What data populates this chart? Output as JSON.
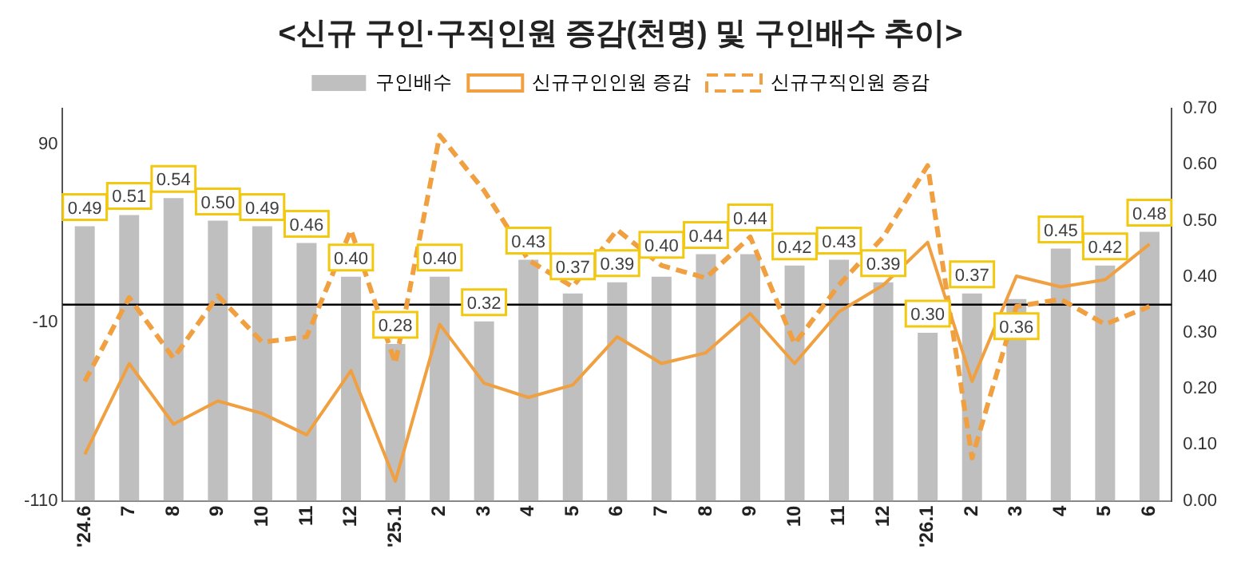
{
  "chart_data": {
    "type": "bar",
    "title": "<신규 구인·구직인원 증감(천명) 및 구인배수 추이>",
    "categories": [
      "'24.6",
      "7",
      "8",
      "9",
      "10",
      "11",
      "12",
      "'25.1",
      "2",
      "3",
      "4",
      "5",
      "6",
      "7",
      "8",
      "9",
      "10",
      "11",
      "12",
      "'26.1",
      "2",
      "3",
      "4",
      "5",
      "6"
    ],
    "series": [
      {
        "name": "구인배수",
        "type": "bar",
        "axis": "y2",
        "color": "#bfbfbf",
        "values": [
          0.49,
          0.51,
          0.54,
          0.5,
          0.49,
          0.46,
          0.4,
          0.28,
          0.4,
          0.32,
          0.43,
          0.37,
          0.39,
          0.4,
          0.44,
          0.44,
          0.42,
          0.43,
          0.39,
          0.3,
          0.37,
          0.36,
          0.45,
          0.42,
          0.48
        ],
        "value_labels": [
          "0.49",
          "0.51",
          "0.54",
          "0.50",
          "0.49",
          "0.46",
          "0.40",
          "0.28",
          "0.40",
          "0.32",
          "0.43",
          "0.37",
          "0.39",
          "0.40",
          "0.44",
          "0.44",
          "0.42",
          "0.43",
          "0.39",
          "0.30",
          "0.37",
          "0.36",
          "0.45",
          "0.42",
          "0.48"
        ]
      },
      {
        "name": "신규구인인원 증감",
        "type": "line",
        "line_style": "solid",
        "color": "#f0a040",
        "values": [
          -84,
          -33,
          -67,
          -54,
          -61,
          -73,
          -37,
          -99,
          -11,
          -44,
          -52,
          -45,
          -18,
          -33,
          -27,
          -5,
          -33,
          -4,
          11,
          35,
          -43,
          16,
          10,
          14,
          34
        ]
      },
      {
        "name": "신규구직인원 증감",
        "type": "line",
        "line_style": "dashed",
        "color": "#f0a040",
        "values": [
          -43,
          4,
          -30,
          5,
          -21,
          -18,
          42,
          -33,
          95,
          64,
          25,
          10,
          42,
          22,
          15,
          38,
          -22,
          11,
          38,
          78,
          -86,
          -1,
          3,
          -11,
          -1
        ]
      }
    ],
    "ylim": [
      -110,
      110
    ],
    "yticks": [
      -110,
      -10,
      90
    ],
    "y2lim": [
      0,
      0.7
    ],
    "y2ticks": [
      {
        "value": 0,
        "label": "0.00"
      },
      {
        "value": 0.1,
        "label": "0.10"
      },
      {
        "value": 0.2,
        "label": "0.20"
      },
      {
        "value": 0.3,
        "label": "0.30"
      },
      {
        "value": 0.4,
        "label": "0.40"
      },
      {
        "value": 0.5,
        "label": "0.50"
      },
      {
        "value": 0.6,
        "label": "0.60"
      },
      {
        "value": 0.7,
        "label": "0.70"
      }
    ],
    "ref_lines": [
      {
        "axis": "y",
        "value": 0,
        "color": "#000000"
      }
    ],
    "grid": false,
    "legend": "top",
    "marker": "none"
  }
}
